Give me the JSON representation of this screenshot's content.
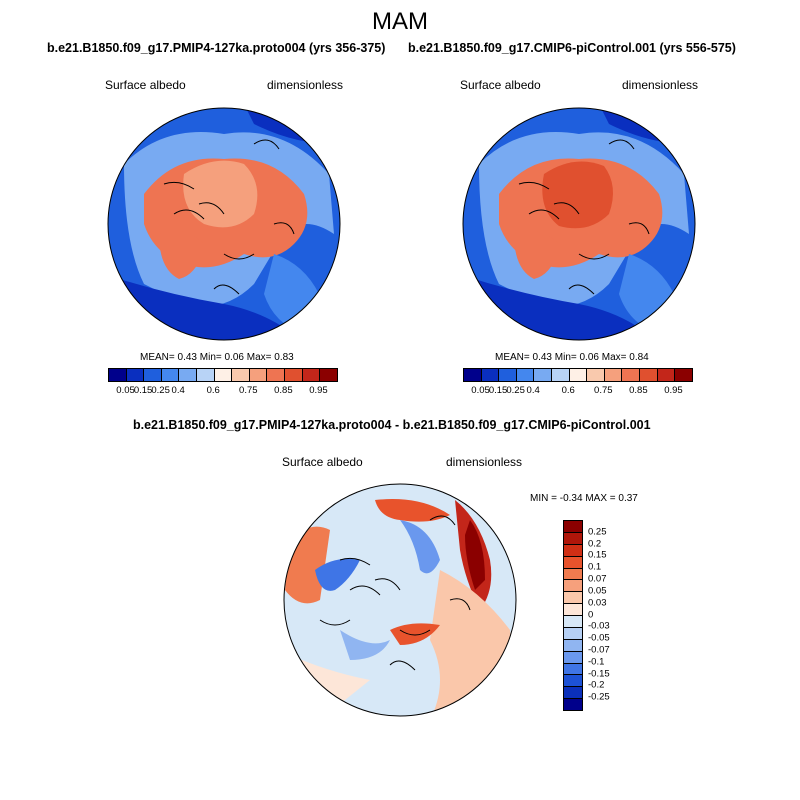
{
  "season": "MAM",
  "panels": [
    {
      "title": "b.e21.B1850.f09_g17.PMIP4-127ka.proto004 (yrs 356-375)",
      "variable": "Surface albedo",
      "units": "dimensionless",
      "stats": {
        "mean_label": "MEAN=",
        "mean": "0.43",
        "min_label": "Min=",
        "min": "0.06",
        "max_label": "Max=",
        "max": "0.83"
      }
    },
    {
      "title": "b.e21.B1850.f09_g17.CMIP6-piControl.001 (yrs 556-575)",
      "variable": "Surface albedo",
      "units": "dimensionless",
      "stats": {
        "mean_label": "MEAN=",
        "mean": "0.43",
        "min_label": "Min=",
        "min": "0.06",
        "max_label": "Max=",
        "max": "0.84"
      }
    }
  ],
  "diff_panel": {
    "title": "b.e21.B1850.f09_g17.PMIP4-127ka.proto004 - b.e21.B1850.f09_g17.CMIP6-piControl.001",
    "variable": "Surface albedo",
    "units": "dimensionless",
    "minmax": {
      "min_label": "MIN =",
      "min": "-0.34",
      "max_label": "MAX =",
      "max": "0.37"
    }
  },
  "colorbar_abs": {
    "colors": [
      "#00008b",
      "#0a2fbf",
      "#1f5fdd",
      "#4487ee",
      "#78aaf2",
      "#b8d3f6",
      "#fef0e6",
      "#f9c9ad",
      "#f5a07d",
      "#ee7452",
      "#e0502f",
      "#c3261a",
      "#8b0000"
    ],
    "tick_labels": [
      "0.05",
      "0.15",
      "0.25",
      "0.4",
      "0.6",
      "0.75",
      "0.85",
      "0.95"
    ]
  },
  "colorbar_diff": {
    "colors": [
      "#8b0000",
      "#b0160a",
      "#d02f15",
      "#e8532c",
      "#f07b4f",
      "#f6a07c",
      "#fac7aa",
      "#fde6d8",
      "#d7e8f7",
      "#b6d0f4",
      "#90b5f1",
      "#6a98ee",
      "#3f75e6",
      "#1d52d6",
      "#0b30bb",
      "#00008b"
    ],
    "tick_labels": [
      "0.25",
      "0.2",
      "0.15",
      "0.1",
      "0.07",
      "0.05",
      "0.03",
      "0",
      "-0.03",
      "-0.05",
      "-0.07",
      "-0.1",
      "-0.15",
      "-0.2",
      "-0.25"
    ]
  },
  "icons": [
    "polar-map-albedo-127ka",
    "polar-map-albedo-picontrol",
    "polar-map-albedo-difference"
  ]
}
